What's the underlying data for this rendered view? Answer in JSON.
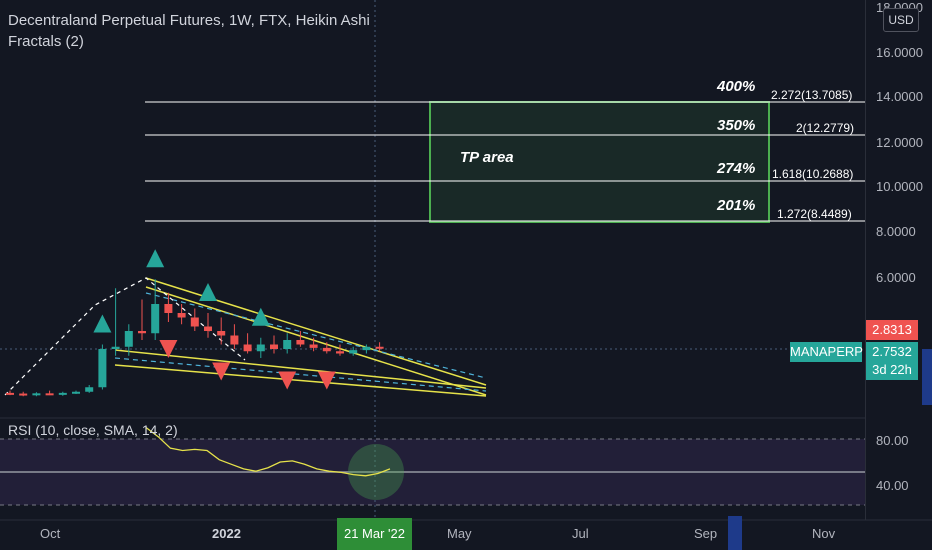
{
  "header": {
    "title": "Decentraland Perpetual Futures, 1W, FTX, Heikin Ashi",
    "indicator": "Fractals (2)"
  },
  "rsi": {
    "label": "RSI (10, close, SMA, 14, 2)",
    "levels": [
      "80.00",
      "40.00"
    ]
  },
  "price_axis": {
    "currency": "USD",
    "labels": [
      "18.0000",
      "16.0000",
      "14.0000",
      "12.0000",
      "10.0000",
      "8.0000",
      "6.0000"
    ],
    "last_price": "2.8313",
    "symbol": "MANAPERP",
    "mark_price": "2.7532",
    "countdown": "3d 22h"
  },
  "time_axis": {
    "labels": [
      "Oct",
      "2022",
      "May",
      "Jul",
      "Sep",
      "Nov"
    ],
    "crosshair_date": "21 Mar '22"
  },
  "fib": {
    "tp_label": "TP area",
    "levels": [
      {
        "pct": "400%",
        "value": "2.272(13.7085)"
      },
      {
        "pct": "350%",
        "value": "2(12.2779)"
      },
      {
        "pct": "274%",
        "value": "1.618(10.2688)"
      },
      {
        "pct": "201%",
        "value": "1.272(8.4489)"
      }
    ]
  },
  "colors": {
    "background": "#131722",
    "up": "#26a69a",
    "down": "#ef5350",
    "pattern": "#e6e24a",
    "channel": "#4fb3d9",
    "tp_box": "#4caf50",
    "rsi_line": "#e6e24a"
  },
  "chart_data": {
    "type": "candlestick",
    "ylim": [
      0,
      18
    ],
    "candles": [
      {
        "o": 0.85,
        "h": 0.95,
        "l": 0.75,
        "c": 0.82
      },
      {
        "o": 0.82,
        "h": 0.9,
        "l": 0.7,
        "c": 0.78
      },
      {
        "o": 0.78,
        "h": 0.88,
        "l": 0.7,
        "c": 0.83
      },
      {
        "o": 0.83,
        "h": 0.95,
        "l": 0.75,
        "c": 0.8
      },
      {
        "o": 0.8,
        "h": 0.9,
        "l": 0.72,
        "c": 0.85
      },
      {
        "o": 0.85,
        "h": 0.95,
        "l": 0.8,
        "c": 0.9
      },
      {
        "o": 0.9,
        "h": 1.2,
        "l": 0.85,
        "c": 1.1
      },
      {
        "o": 1.1,
        "h": 3.0,
        "l": 1.0,
        "c": 2.8
      },
      {
        "o": 2.8,
        "h": 5.5,
        "l": 2.5,
        "c": 2.9
      },
      {
        "o": 2.9,
        "h": 3.9,
        "l": 2.5,
        "c": 3.6
      },
      {
        "o": 3.6,
        "h": 5.0,
        "l": 3.2,
        "c": 3.5
      },
      {
        "o": 3.5,
        "h": 5.9,
        "l": 3.2,
        "c": 4.8
      },
      {
        "o": 4.8,
        "h": 5.3,
        "l": 4.0,
        "c": 4.4
      },
      {
        "o": 4.4,
        "h": 4.8,
        "l": 3.9,
        "c": 4.2
      },
      {
        "o": 4.2,
        "h": 4.6,
        "l": 3.6,
        "c": 3.8
      },
      {
        "o": 3.8,
        "h": 4.4,
        "l": 3.3,
        "c": 3.6
      },
      {
        "o": 3.6,
        "h": 4.2,
        "l": 3.0,
        "c": 3.4
      },
      {
        "o": 3.4,
        "h": 3.9,
        "l": 2.8,
        "c": 3.0
      },
      {
        "o": 3.0,
        "h": 3.5,
        "l": 2.6,
        "c": 2.7
      },
      {
        "o": 2.7,
        "h": 3.3,
        "l": 2.4,
        "c": 3.0
      },
      {
        "o": 3.0,
        "h": 3.4,
        "l": 2.6,
        "c": 2.8
      },
      {
        "o": 2.8,
        "h": 3.5,
        "l": 2.6,
        "c": 3.2
      },
      {
        "o": 3.2,
        "h": 3.6,
        "l": 2.9,
        "c": 3.0
      },
      {
        "o": 3.0,
        "h": 3.3,
        "l": 2.7,
        "c": 2.85
      },
      {
        "o": 2.85,
        "h": 3.1,
        "l": 2.6,
        "c": 2.7
      },
      {
        "o": 2.7,
        "h": 3.0,
        "l": 2.5,
        "c": 2.6
      },
      {
        "o": 2.6,
        "h": 2.9,
        "l": 2.5,
        "c": 2.75
      },
      {
        "o": 2.75,
        "h": 3.0,
        "l": 2.6,
        "c": 2.9
      },
      {
        "o": 2.9,
        "h": 3.1,
        "l": 2.7,
        "c": 2.83
      }
    ],
    "fractals_up_at": [
      7,
      11,
      15,
      19
    ],
    "fractals_down_at": [
      12,
      16,
      21,
      24
    ],
    "rsi_values": [
      90,
      82,
      72,
      70,
      71,
      70,
      62,
      58,
      54,
      52,
      55,
      60,
      61,
      58,
      54,
      52,
      51,
      49,
      48,
      50,
      54
    ]
  }
}
